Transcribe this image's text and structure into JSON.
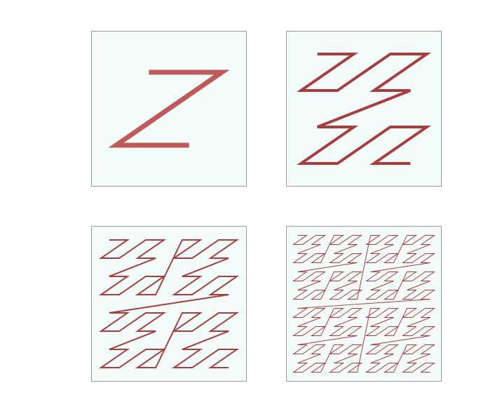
{
  "figure": {
    "panels": [
      {
        "order": 1,
        "label": ""
      },
      {
        "order": 2,
        "label": ""
      },
      {
        "order": 3,
        "label": ""
      },
      {
        "order": 4,
        "label": ""
      }
    ],
    "colors": {
      "stroke_main": "#c05a5a",
      "stroke_fine": "#a93c3c",
      "panel_background": "#f3fbfb",
      "panel_border": "#9a9a9a",
      "page_background": "#ffffff"
    }
  }
}
